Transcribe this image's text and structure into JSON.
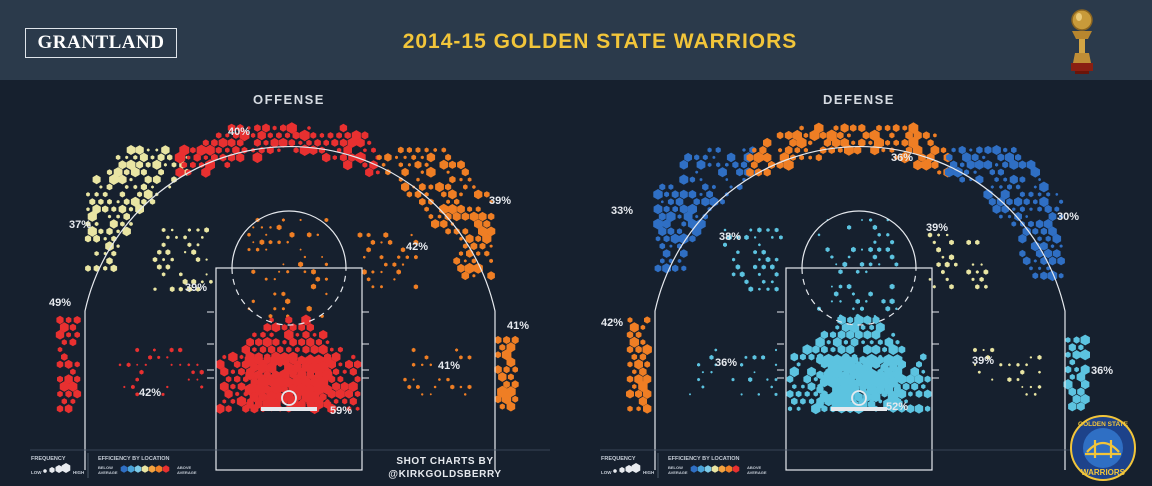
{
  "header": {
    "logo_text": "GRANTLAND",
    "title": "2014-15 GOLDEN STATE WARRIORS",
    "trophy_icon": "championship-trophy-icon"
  },
  "legend": {
    "frequency_label": "FREQUENCY",
    "frequency_low": "LOW",
    "frequency_high": "HIGH",
    "efficiency_label": "EFFICIENCY BY LOCATION",
    "below_average": "BELOW AVERAGE",
    "above_average": "ABOVE AVERAGE",
    "scale_colors": [
      "#2f6fc4",
      "#4aa3d8",
      "#7ccbe8",
      "#e9e5a3",
      "#f3a23f",
      "#ef7e24",
      "#e83030"
    ]
  },
  "credit": {
    "line1": "SHOT CHARTS BY",
    "line2": "@KIRKGOLDSBERRY"
  },
  "team_badge": {
    "top_text": "GOLDEN STATE",
    "bottom_text": "WARRIORS",
    "icon": "warriors-bridge-logo-icon"
  },
  "colors": {
    "blue": "#2f6fc4",
    "light_blue": "#4aa3d8",
    "cyan": "#5cc3e0",
    "pale_yellow": "#e9e5a3",
    "orange": "#ef7e24",
    "red": "#e83030",
    "background": "#16202e",
    "court_lines": "#e6e9ee",
    "title": "#f2c53a"
  },
  "chart_data": [
    {
      "type": "heatmap",
      "title": "OFFENSE",
      "zones": [
        {
          "zone": "left-corner-three",
          "pct": "49%",
          "efficiency": "above average"
        },
        {
          "zone": "left-wing-three",
          "pct": "37%",
          "efficiency": "average"
        },
        {
          "zone": "top-of-key-three",
          "pct": "40%",
          "efficiency": "above average"
        },
        {
          "zone": "right-wing-three",
          "pct": "39%",
          "efficiency": "above average"
        },
        {
          "zone": "right-corner-three",
          "pct": "41%",
          "efficiency": "above average"
        },
        {
          "zone": "left-elbow-midrange",
          "pct": "39%",
          "efficiency": "average"
        },
        {
          "zone": "right-elbow-midrange",
          "pct": "42%",
          "efficiency": "above average"
        },
        {
          "zone": "left-baseline-midrange",
          "pct": "42%",
          "efficiency": "above average"
        },
        {
          "zone": "right-baseline-midrange",
          "pct": "41%",
          "efficiency": "above average"
        },
        {
          "zone": "restricted-area",
          "pct": "59%",
          "efficiency": "above average"
        }
      ]
    },
    {
      "type": "heatmap",
      "title": "DEFENSE",
      "zones": [
        {
          "zone": "left-corner-three",
          "pct": "42%",
          "efficiency": "above average"
        },
        {
          "zone": "left-wing-three",
          "pct": "33%",
          "efficiency": "below average"
        },
        {
          "zone": "top-of-key-three",
          "pct": "36%",
          "efficiency": "above average"
        },
        {
          "zone": "right-wing-three",
          "pct": "30%",
          "efficiency": "below average"
        },
        {
          "zone": "right-corner-three",
          "pct": "36%",
          "efficiency": "below average"
        },
        {
          "zone": "left-elbow-midrange",
          "pct": "38%",
          "efficiency": "below average"
        },
        {
          "zone": "right-elbow-midrange",
          "pct": "39%",
          "efficiency": "average"
        },
        {
          "zone": "left-baseline-midrange",
          "pct": "36%",
          "efficiency": "below average"
        },
        {
          "zone": "right-baseline-midrange",
          "pct": "39%",
          "efficiency": "average"
        },
        {
          "zone": "restricted-area",
          "pct": "52%",
          "efficiency": "below average"
        }
      ]
    }
  ]
}
